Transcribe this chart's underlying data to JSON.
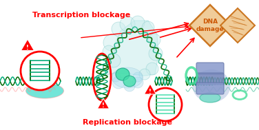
{
  "bg_color": "#ffffff",
  "text_transcription": "Transcription blockage",
  "text_replication": "Replication blockage",
  "text_dna_line1": "DNA",
  "text_dna_line2": "damage",
  "text_color_red": "#ff0000",
  "text_color_orange": "#cc5500",
  "dna_dark": "#006600",
  "dna_teal": "#00aa77",
  "dna_cyan_light": "#99ddcc",
  "circle_red": "#ff0000",
  "teal_fill": "#44ddcc",
  "blue_fill": "#88aadd",
  "light_blue": "#aabbdd",
  "light_cyan": "#bbeeee",
  "cyan_bubble": "#cceeee",
  "warn_orange": "#cc7722",
  "warn_fill": "#f0cc99",
  "red": "#ff0000",
  "pink_strand": "#ff8888",
  "green_oval_fill": "#66ddaa"
}
